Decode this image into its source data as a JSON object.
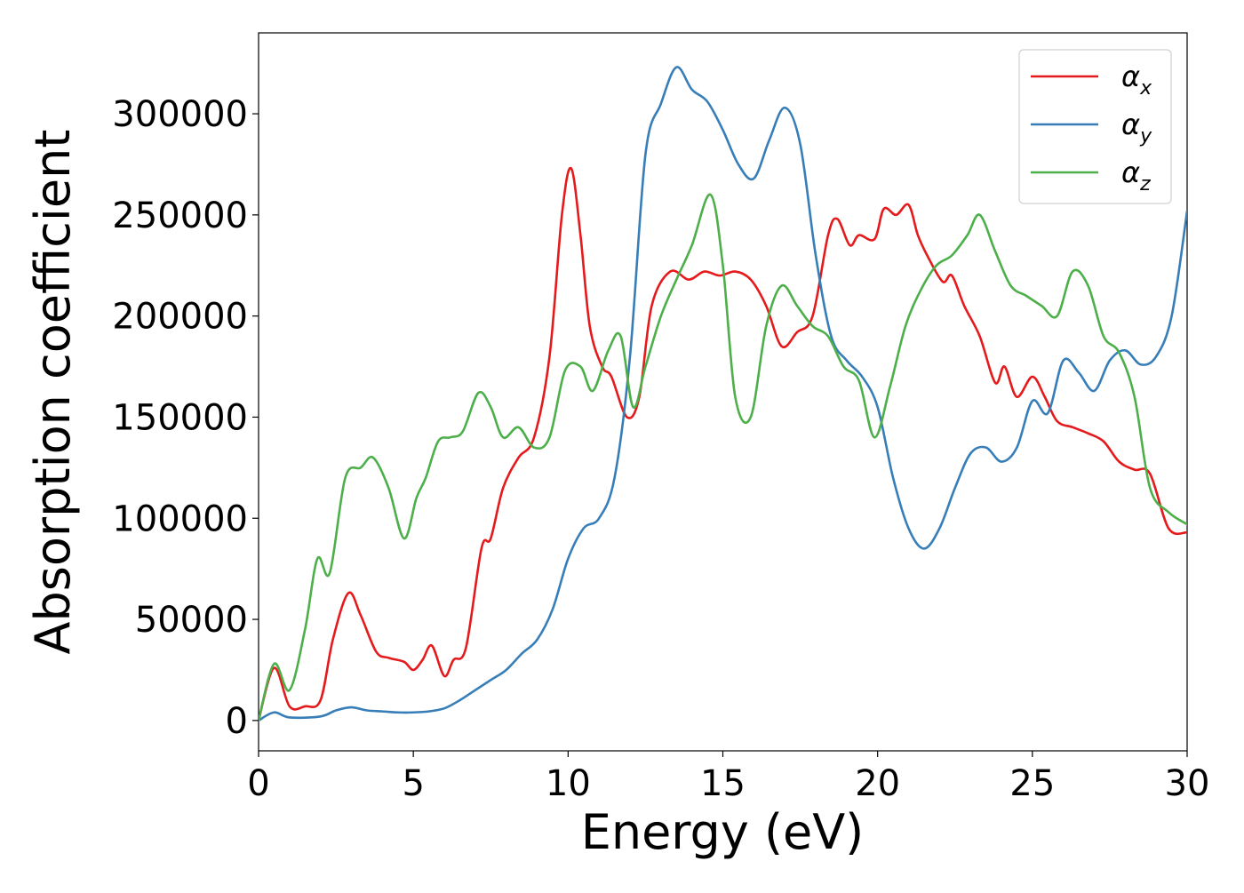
{
  "chart_data": {
    "type": "line",
    "title": "",
    "xlabel": "Energy (eV)",
    "ylabel": "Absorption coefficient",
    "xlim": [
      0,
      30
    ],
    "ylim": [
      -15000,
      340000
    ],
    "xticks": [
      0,
      5,
      10,
      15,
      20,
      25,
      30
    ],
    "yticks": [
      0,
      50000,
      100000,
      150000,
      200000,
      250000,
      300000
    ],
    "xtick_labels": [
      "0",
      "5",
      "10",
      "15",
      "20",
      "25",
      "30"
    ],
    "ytick_labels": [
      "0",
      "50000",
      "100000",
      "150000",
      "200000",
      "250000",
      "300000"
    ],
    "grid": false,
    "legend_position": "top-right",
    "series": [
      {
        "name": "α",
        "subscript": "x",
        "color": "#e41a1c",
        "x": [
          0,
          0.5,
          1.0,
          1.5,
          2.0,
          2.4,
          2.9,
          3.3,
          3.8,
          4.2,
          4.7,
          5.0,
          5.3,
          5.6,
          6.0,
          6.3,
          6.7,
          7.2,
          7.5,
          7.9,
          8.4,
          8.9,
          9.4,
          9.8,
          10.1,
          10.4,
          10.7,
          11.1,
          11.4,
          11.9,
          12.3,
          12.7,
          13.3,
          13.9,
          14.4,
          14.9,
          15.4,
          15.9,
          16.4,
          16.9,
          17.4,
          17.9,
          18.4,
          18.7,
          19.1,
          19.4,
          19.9,
          20.2,
          20.6,
          21.0,
          21.3,
          21.6,
          22.1,
          22.4,
          22.8,
          23.3,
          23.8,
          24.1,
          24.5,
          25.0,
          25.4,
          25.8,
          26.3,
          26.8,
          27.3,
          27.8,
          28.3,
          28.8,
          29.4,
          30.0
        ],
        "values": [
          0,
          26000,
          7000,
          7000,
          10000,
          40000,
          63000,
          52000,
          34000,
          31000,
          29000,
          25000,
          30000,
          37000,
          22000,
          30000,
          36000,
          85000,
          90000,
          115000,
          130000,
          140000,
          180000,
          250000,
          273000,
          240000,
          195000,
          175000,
          170000,
          150000,
          160000,
          205000,
          222000,
          218000,
          222000,
          220000,
          222000,
          218000,
          205000,
          185000,
          192000,
          200000,
          240000,
          248000,
          235000,
          240000,
          238000,
          253000,
          250000,
          255000,
          240000,
          230000,
          217000,
          220000,
          205000,
          190000,
          167000,
          175000,
          160000,
          170000,
          160000,
          148000,
          145000,
          142000,
          138000,
          128000,
          124000,
          122000,
          95000,
          93000
        ]
      },
      {
        "name": "α",
        "subscript": "y",
        "color": "#377eb8",
        "x": [
          0,
          0.5,
          1.0,
          2.0,
          2.5,
          3.0,
          3.5,
          4.0,
          4.5,
          5.0,
          5.5,
          6.0,
          6.5,
          7.0,
          7.5,
          8.0,
          8.5,
          9.0,
          9.5,
          10.0,
          10.5,
          11.0,
          11.5,
          12.0,
          12.5,
          13.0,
          13.5,
          14.0,
          14.5,
          15.0,
          15.5,
          16.0,
          16.5,
          17.0,
          17.5,
          18.0,
          18.5,
          19.0,
          19.5,
          20.0,
          20.5,
          21.0,
          21.5,
          22.0,
          22.5,
          23.0,
          23.5,
          24.0,
          24.5,
          25.0,
          25.5,
          26.0,
          26.5,
          27.0,
          27.5,
          28.0,
          28.5,
          29.0,
          29.5,
          30.0
        ],
        "values": [
          0,
          4000,
          1500,
          2000,
          5000,
          6500,
          5000,
          4500,
          4000,
          4000,
          4500,
          6000,
          10000,
          15000,
          20000,
          25000,
          33000,
          40000,
          55000,
          80000,
          95000,
          100000,
          120000,
          180000,
          280000,
          305000,
          323000,
          312000,
          306000,
          292000,
          275000,
          268000,
          287000,
          303000,
          285000,
          230000,
          190000,
          178000,
          170000,
          155000,
          120000,
          95000,
          85000,
          95000,
          115000,
          132000,
          135000,
          128000,
          135000,
          158000,
          152000,
          178000,
          172000,
          163000,
          178000,
          183000,
          176000,
          180000,
          200000,
          252000
        ]
      },
      {
        "name": "α",
        "subscript": "z",
        "color": "#4daf4a",
        "x": [
          0,
          0.5,
          1.0,
          1.5,
          1.9,
          2.3,
          2.8,
          3.3,
          3.7,
          4.2,
          4.7,
          5.1,
          5.4,
          5.8,
          6.2,
          6.6,
          7.1,
          7.5,
          7.9,
          8.4,
          8.9,
          9.4,
          9.9,
          10.4,
          10.8,
          11.3,
          11.7,
          12.1,
          12.5,
          13.0,
          13.5,
          14.0,
          14.6,
          15.0,
          15.4,
          15.9,
          16.4,
          16.9,
          17.4,
          17.9,
          18.4,
          18.9,
          19.4,
          19.9,
          20.4,
          20.9,
          21.4,
          21.9,
          22.4,
          22.9,
          23.3,
          23.8,
          24.3,
          24.8,
          25.3,
          25.8,
          26.3,
          26.8,
          27.3,
          27.8,
          28.3,
          28.8,
          29.4,
          30.0
        ],
        "values": [
          0,
          28000,
          15000,
          45000,
          80000,
          73000,
          120000,
          125000,
          130000,
          115000,
          90000,
          110000,
          120000,
          138000,
          140000,
          143000,
          162000,
          155000,
          140000,
          145000,
          135000,
          140000,
          173000,
          175000,
          163000,
          183000,
          190000,
          155000,
          175000,
          200000,
          218000,
          235000,
          260000,
          225000,
          160000,
          150000,
          195000,
          215000,
          205000,
          195000,
          190000,
          175000,
          168000,
          140000,
          165000,
          195000,
          213000,
          225000,
          230000,
          240000,
          250000,
          232000,
          215000,
          210000,
          205000,
          200000,
          222000,
          215000,
          190000,
          182000,
          160000,
          115000,
          103000,
          97000
        ]
      }
    ]
  }
}
